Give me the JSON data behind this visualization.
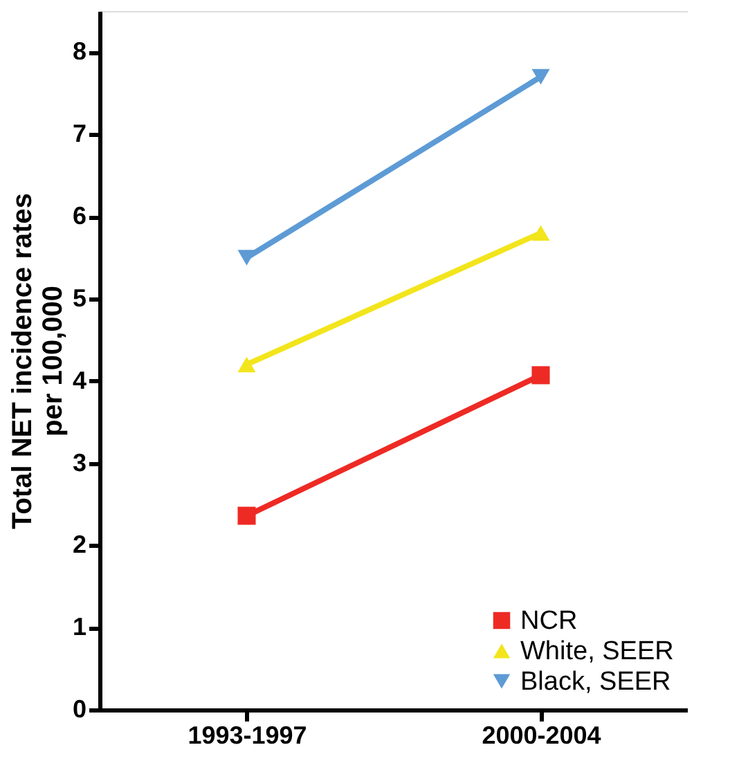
{
  "chart_data": {
    "type": "line",
    "ylabel": "Total NET incidence rates\nper 100,000",
    "categories": [
      "1993-1997",
      "2000-2004"
    ],
    "series": [
      {
        "name": "NCR",
        "color": "#ee2a24",
        "marker": "square",
        "values": [
          2.36,
          4.07
        ]
      },
      {
        "name": "White, SEER",
        "color": "#f2e51c",
        "marker": "triangle",
        "values": [
          4.2,
          5.8
        ]
      },
      {
        "name": "Black, SEER",
        "color": "#5d9bd5",
        "marker": "triangle-down",
        "values": [
          5.5,
          7.7
        ]
      }
    ],
    "ylim": [
      0,
      8.5
    ],
    "yticks": [
      0,
      1,
      2,
      3,
      4,
      5,
      6,
      7,
      8
    ],
    "grid": false,
    "legend": "bottom right",
    "line_style": "solid"
  }
}
